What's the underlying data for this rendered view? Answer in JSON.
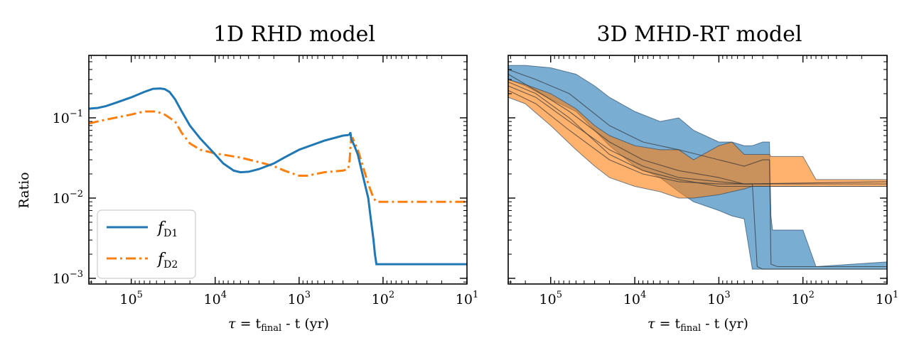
{
  "colors": {
    "fD1": "#1f77b4",
    "fD2": "#ff7f0e",
    "axis": "#000000",
    "run_line": "#333333"
  },
  "chart_data": [
    {
      "type": "line",
      "title": "1D RHD model",
      "xlabel": "τ = t_final - t (yr)",
      "ylabel": "Ratio",
      "xscale": "log",
      "yscale": "log",
      "x_reversed": true,
      "xlim": [
        320000,
        10
      ],
      "ylim": [
        0.00085,
        0.6
      ],
      "xtick_labels": [
        "10^5",
        "10^4",
        "10^3",
        "10^2",
        "10^1"
      ],
      "ytick_labels": [
        "10^-1",
        "10^-2",
        "10^-3"
      ],
      "legend": {
        "location": "lower-left",
        "entries": [
          {
            "main": "f",
            "sub": "D1"
          },
          {
            "main": "f",
            "sub": "D2"
          }
        ]
      },
      "series": [
        {
          "name": "f_D1",
          "style": "solid",
          "x": [
            320000,
            250000,
            200000,
            150000,
            100000,
            70000,
            55000,
            45000,
            40000,
            35000,
            30000,
            25000,
            20000,
            15000,
            10000,
            8000,
            6000,
            5000,
            4000,
            3000,
            2000,
            1500,
            1000,
            500,
            300,
            260,
            250,
            245,
            240,
            235,
            230,
            220,
            200,
            180,
            150,
            140,
            130,
            125,
            120,
            10
          ],
          "y": [
            0.13,
            0.133,
            0.14,
            0.155,
            0.18,
            0.21,
            0.23,
            0.232,
            0.228,
            0.21,
            0.17,
            0.12,
            0.08,
            0.055,
            0.035,
            0.027,
            0.022,
            0.021,
            0.0213,
            0.023,
            0.027,
            0.032,
            0.04,
            0.052,
            0.06,
            0.061,
            0.062,
            0.066,
            0.055,
            0.052,
            0.05,
            0.045,
            0.035,
            0.022,
            0.01,
            0.0055,
            0.003,
            0.002,
            0.0015,
            0.0015
          ]
        },
        {
          "name": "f_D2",
          "style": "dashdot",
          "x": [
            320000,
            200000,
            100000,
            70000,
            50000,
            40000,
            30000,
            25000,
            20000,
            15000,
            10000,
            5000,
            3000,
            2000,
            1500,
            1000,
            800,
            500,
            300,
            260,
            250,
            240,
            230,
            220,
            200,
            180,
            150,
            130,
            120,
            10
          ],
          "y": [
            0.085,
            0.095,
            0.11,
            0.12,
            0.12,
            0.11,
            0.09,
            0.065,
            0.048,
            0.04,
            0.036,
            0.032,
            0.028,
            0.025,
            0.022,
            0.019,
            0.019,
            0.021,
            0.022,
            0.023,
            0.03,
            0.055,
            0.056,
            0.05,
            0.04,
            0.028,
            0.015,
            0.01,
            0.009,
            0.009
          ]
        }
      ]
    },
    {
      "type": "area",
      "title": "3D MHD-RT model",
      "xlabel": "τ = t_final - t (yr)",
      "ylabel": "",
      "xscale": "log",
      "yscale": "log",
      "x_reversed": true,
      "xlim": [
        320000,
        10
      ],
      "ylim": [
        0.00085,
        0.6
      ],
      "xtick_labels": [
        "10^5",
        "10^4",
        "10^3",
        "10^2",
        "10^1"
      ],
      "series": [
        {
          "name": "",
          "color": "fD1",
          "x": [
            320000,
            200000,
            100000,
            50000,
            30000,
            20000,
            10000,
            5000,
            3000,
            2000,
            1000,
            700,
            500,
            400,
            300,
            250,
            240,
            230,
            200,
            100,
            70,
            10
          ],
          "upper": [
            0.45,
            0.45,
            0.42,
            0.35,
            0.25,
            0.18,
            0.12,
            0.09,
            0.1,
            0.07,
            0.05,
            0.05,
            0.045,
            0.045,
            0.05,
            0.05,
            0.006,
            0.004,
            0.004,
            0.004,
            0.0014,
            0.0016
          ],
          "lower": [
            0.3,
            0.25,
            0.17,
            0.12,
            0.07,
            0.045,
            0.025,
            0.018,
            0.012,
            0.009,
            0.007,
            0.006,
            0.0055,
            0.0013,
            0.0013,
            0.0013,
            0.0013,
            0.0013,
            0.0013,
            0.0013,
            0.0013,
            0.0013
          ]
        },
        {
          "name": "",
          "color": "fD2",
          "x": [
            320000,
            200000,
            100000,
            50000,
            30000,
            20000,
            10000,
            5000,
            3000,
            2000,
            1000,
            700,
            500,
            400,
            300,
            250,
            240,
            200,
            100,
            70,
            10
          ],
          "upper": [
            0.3,
            0.26,
            0.2,
            0.13,
            0.08,
            0.06,
            0.045,
            0.04,
            0.04,
            0.03,
            0.045,
            0.05,
            0.035,
            0.035,
            0.035,
            0.035,
            0.033,
            0.033,
            0.033,
            0.017,
            0.017
          ],
          "lower": [
            0.18,
            0.15,
            0.08,
            0.04,
            0.025,
            0.018,
            0.014,
            0.012,
            0.01,
            0.01,
            0.011,
            0.012,
            0.013,
            0.014,
            0.014,
            0.014,
            0.014,
            0.014,
            0.014,
            0.014,
            0.014
          ]
        }
      ],
      "runs": [
        {
          "x": [
            320000,
            150000,
            60000,
            20000,
            8000,
            3000,
            1000,
            500,
            300,
            250,
            240,
            200,
            100,
            10
          ],
          "y": [
            0.4,
            0.3,
            0.2,
            0.08,
            0.05,
            0.04,
            0.03,
            0.025,
            0.03,
            0.03,
            0.0015,
            0.0014,
            0.0014,
            0.0014
          ]
        },
        {
          "x": [
            320000,
            150000,
            60000,
            20000,
            8000,
            3000,
            1000,
            500,
            400,
            350,
            300,
            10
          ],
          "y": [
            0.35,
            0.22,
            0.12,
            0.05,
            0.03,
            0.022,
            0.018,
            0.015,
            0.015,
            0.0014,
            0.0013,
            0.0013
          ]
        },
        {
          "x": [
            320000,
            150000,
            60000,
            20000,
            8000,
            3000,
            1000,
            500,
            10
          ],
          "y": [
            0.25,
            0.18,
            0.09,
            0.04,
            0.025,
            0.018,
            0.016,
            0.015,
            0.015
          ]
        },
        {
          "x": [
            320000,
            150000,
            60000,
            20000,
            8000,
            3000,
            1000,
            500,
            10
          ],
          "y": [
            0.22,
            0.15,
            0.07,
            0.03,
            0.02,
            0.016,
            0.015,
            0.015,
            0.016
          ]
        },
        {
          "x": [
            320000,
            150000,
            60000,
            20000,
            8000,
            3000,
            1000,
            500,
            10
          ],
          "y": [
            0.28,
            0.2,
            0.1,
            0.035,
            0.022,
            0.017,
            0.014,
            0.014,
            0.014
          ]
        }
      ]
    }
  ]
}
